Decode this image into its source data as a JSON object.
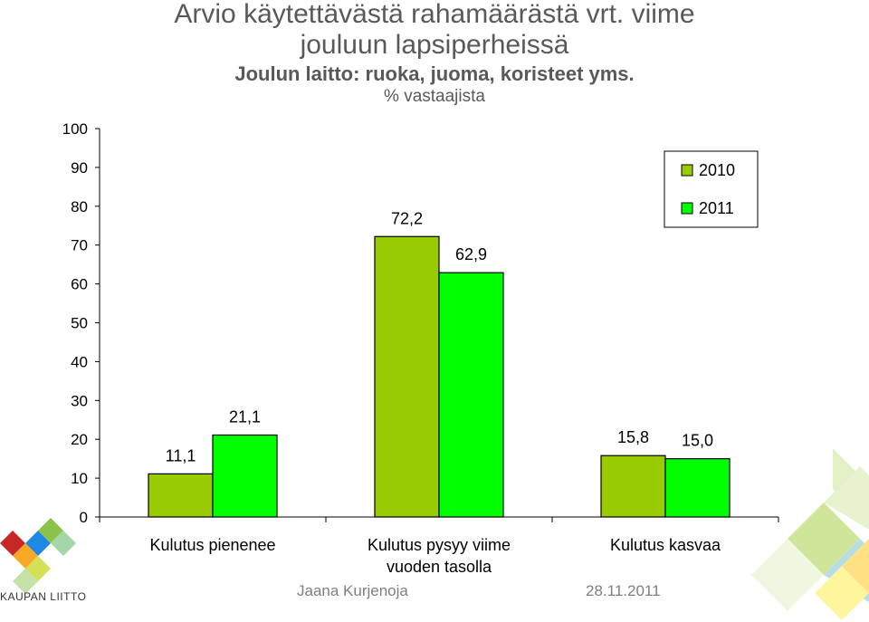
{
  "title_line1": "Arvio käytettävästä rahamäärästä vrt. viime",
  "title_line2": "jouluun lapsiperheissä",
  "subtitle": "Joulun laitto: ruoka, juoma, koristeet yms.",
  "unit": "% vastaajista",
  "footer": {
    "name": "Jaana Kurjenoja",
    "date": "28.11.2011"
  },
  "logo": {
    "text": "KAUPAN LIITTO"
  },
  "colors": {
    "series_2010": "#99CC00",
    "series_2011": "#00FF00",
    "text": "#595959"
  },
  "chart_data": {
    "type": "bar",
    "categories": [
      "Kulutus pienenee",
      "Kulutus pysyy viime vuoden tasolla",
      "Kulutus kasvaa"
    ],
    "category_lines": [
      [
        "Kulutus pienenee"
      ],
      [
        "Kulutus pysyy viime",
        "vuoden tasolla"
      ],
      [
        "Kulutus kasvaa"
      ]
    ],
    "series": [
      {
        "name": "2010",
        "values": [
          11.1,
          72.2,
          15.8
        ],
        "labels": [
          "11,1",
          "72,2",
          "15,8"
        ]
      },
      {
        "name": "2011",
        "values": [
          21.1,
          62.9,
          15.0
        ],
        "labels": [
          "21,1",
          "62,9",
          "15,0"
        ]
      }
    ],
    "yticks": [
      0,
      10,
      20,
      30,
      40,
      50,
      60,
      70,
      80,
      90,
      100
    ],
    "ylim": [
      0,
      100
    ],
    "legend_position": "top-right",
    "grid": false
  }
}
